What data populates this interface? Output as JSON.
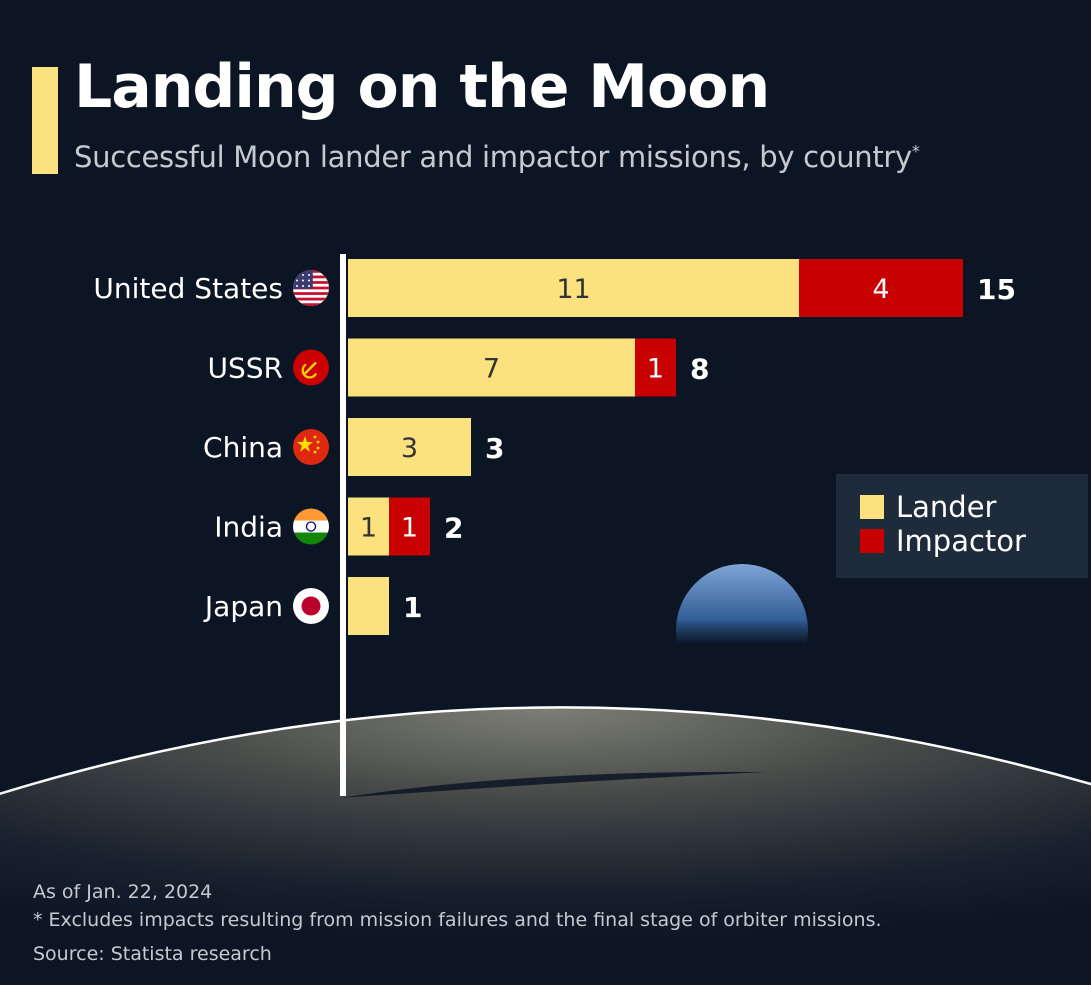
{
  "header": {
    "title": "Landing on the Moon",
    "subtitle": "Successful Moon lander and impactor missions, by country",
    "subtitle_mark": "*"
  },
  "colors": {
    "background": "#0c1524",
    "lander": "#fbe27e",
    "impactor": "#c90000",
    "accent": "#fbe27e"
  },
  "legend": {
    "lander_label": "Lander",
    "impactor_label": "Impactor",
    "placement": "right"
  },
  "footer": {
    "date_note": "As of Jan. 22, 2024",
    "footnote": "* Excludes impacts resulting from mission failures and the final stage of orbiter missions.",
    "source": "Source: Statista research"
  },
  "chart_data": {
    "type": "bar",
    "orientation": "horizontal",
    "stacked": true,
    "categories": [
      "United States",
      "USSR",
      "China",
      "India",
      "Japan"
    ],
    "flags": [
      "us-flag-icon",
      "ussr-flag-icon",
      "china-flag-icon",
      "india-flag-icon",
      "japan-flag-icon"
    ],
    "series": [
      {
        "name": "Lander",
        "values": [
          11,
          7,
          3,
          1,
          1
        ]
      },
      {
        "name": "Impactor",
        "values": [
          4,
          1,
          0,
          1,
          0
        ]
      }
    ],
    "totals": [
      15,
      8,
      3,
      2,
      1
    ],
    "xlim": [
      0,
      15
    ],
    "grid": false
  }
}
